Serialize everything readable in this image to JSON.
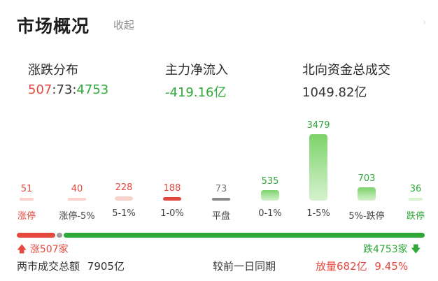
{
  "header": {
    "title": "市场概况",
    "collapse_label": "收起"
  },
  "stats": [
    {
      "label": "涨跌分布",
      "up": "507",
      "flat": "73",
      "down": "4753"
    },
    {
      "label": "主力净流入",
      "value": "-419.16亿"
    },
    {
      "label": "北向资金总成交",
      "value": "1049.82亿"
    }
  ],
  "distribution": {
    "colors": {
      "up": "#e5483f",
      "down": "#2fa83a",
      "flat": "#9e9e9e"
    },
    "buckets": [
      {
        "label": "涨停",
        "count": "51",
        "tone": "red"
      },
      {
        "label": "涨停-5%",
        "count": "40",
        "tone": "red"
      },
      {
        "label": "5-1%",
        "count": "228",
        "tone": "red"
      },
      {
        "label": "1-0%",
        "count": "188",
        "tone": "red"
      },
      {
        "label": "平盘",
        "count": "73",
        "tone": "gray"
      },
      {
        "label": "0-1%",
        "count": "535",
        "tone": "green"
      },
      {
        "label": "1-5%",
        "count": "3479",
        "tone": "green"
      },
      {
        "label": "5%-跌停",
        "count": "703",
        "tone": "green"
      },
      {
        "label": "跌停",
        "count": "36",
        "tone": "green"
      }
    ]
  },
  "breadth": {
    "up_label": "涨507家",
    "down_label": "跌4753家",
    "up_fraction": 0.095,
    "flat_fraction": 0.014
  },
  "footer": {
    "turnover_label": "两市成交总额",
    "turnover_value": "7905亿",
    "compare_label": "较前一日同期",
    "volume_change": "放量682亿",
    "percent_change": "9.45%"
  }
}
